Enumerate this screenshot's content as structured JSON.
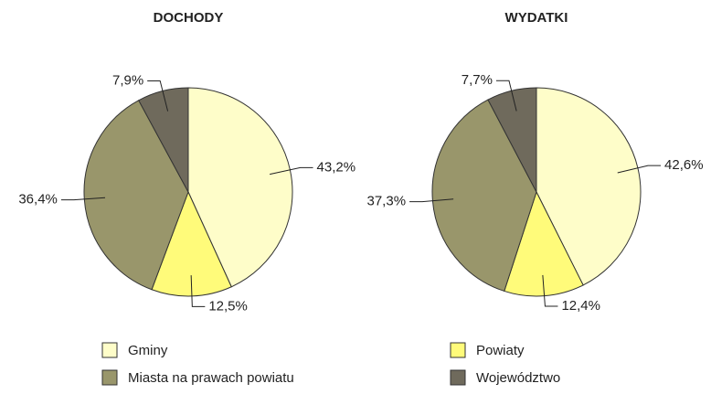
{
  "chart_data": [
    {
      "type": "pie",
      "title": "DOCHODY",
      "values": [
        43.2,
        12.5,
        36.4,
        7.9
      ],
      "value_labels": [
        "43,2%",
        "12,5%",
        "36,4%",
        "7,9%"
      ]
    },
    {
      "type": "pie",
      "title": "WYDATKI",
      "values": [
        42.6,
        12.4,
        37.3,
        7.7
      ],
      "value_labels": [
        "42,6%",
        "12,4%",
        "37,3%",
        "7,7%"
      ]
    }
  ],
  "legend": {
    "categories": [
      "Gminy",
      "Powiaty",
      "Miasta na prawach powiatu",
      "Województwo"
    ],
    "colors": [
      "#fefdc9",
      "#fffb7a",
      "#99966b",
      "#6f6a5c"
    ]
  }
}
